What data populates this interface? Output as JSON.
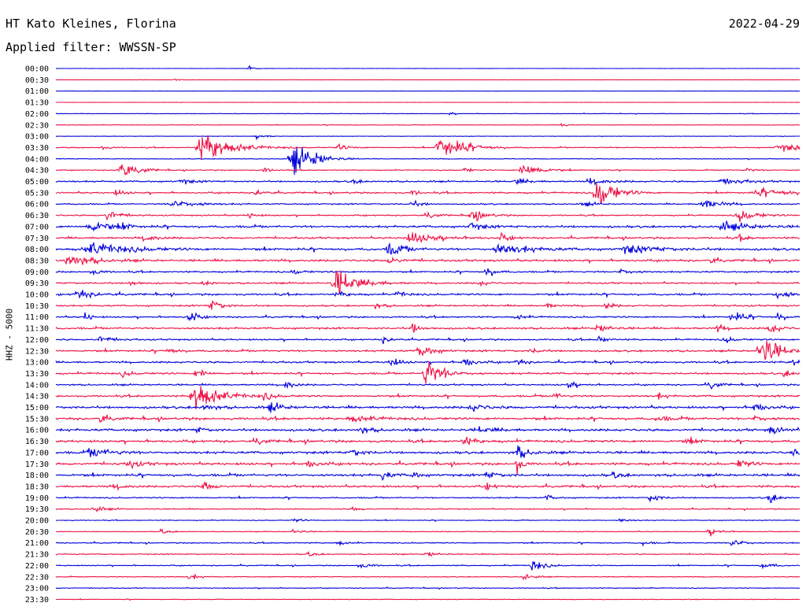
{
  "header": {
    "station": "HT Kato Kleines, Florina",
    "date": "2022-04-29",
    "filter_label": "Applied filter: WWSSN-SP"
  },
  "chart_data": {
    "type": "line",
    "title": "HT Kato Kleines, Florina",
    "subtitle": "Applied filter: WWSSN-SP",
    "ylabel": "HHZ - 5000",
    "xlabel": "",
    "grid": false,
    "legend": "none",
    "colors": [
      "#0000dd",
      "#ee1144"
    ],
    "rows": [
      "00:00",
      "00:30",
      "01:00",
      "01:30",
      "02:00",
      "02:30",
      "03:00",
      "03:30",
      "04:00",
      "04:30",
      "05:00",
      "05:30",
      "06:00",
      "06:30",
      "07:00",
      "07:30",
      "08:00",
      "08:30",
      "09:00",
      "09:30",
      "10:00",
      "10:30",
      "11:00",
      "11:30",
      "12:00",
      "12:30",
      "13:00",
      "13:30",
      "14:00",
      "14:30",
      "15:00",
      "15:30",
      "16:00",
      "16:30",
      "17:00",
      "17:30",
      "18:00",
      "18:30",
      "19:00",
      "19:30",
      "20:00",
      "20:30",
      "21:00",
      "21:30",
      "22:00",
      "22:30",
      "23:00",
      "23:30"
    ],
    "noise": [
      0.2,
      0.2,
      0.15,
      0.15,
      0.4,
      0.4,
      0.3,
      0.8,
      0.5,
      0.7,
      1.2,
      1.2,
      1.0,
      1.0,
      1.6,
      1.4,
      1.8,
      1.6,
      1.2,
      1.2,
      1.4,
      1.2,
      1.2,
      1.4,
      1.2,
      1.4,
      1.4,
      1.4,
      1.2,
      1.4,
      1.8,
      1.8,
      1.8,
      1.8,
      1.8,
      1.8,
      1.8,
      1.6,
      1.0,
      0.8,
      0.6,
      0.6,
      0.8,
      0.8,
      0.8,
      0.6,
      0.6,
      0.5
    ],
    "events": [
      [
        {
          "t": 0.26,
          "a": 4,
          "w": 2
        }
      ],
      [
        {
          "t": 0.16,
          "a": 2,
          "w": 2
        }
      ],
      [],
      [],
      [
        {
          "t": 0.53,
          "a": 3,
          "w": 2
        }
      ],
      [
        {
          "t": 0.68,
          "a": 4,
          "w": 2
        }
      ],
      [
        {
          "t": 0.27,
          "a": 6,
          "w": 3
        }
      ],
      [
        {
          "t": 0.2,
          "a": 28,
          "w": 10
        },
        {
          "t": 0.52,
          "a": 26,
          "w": 8
        },
        {
          "t": 0.38,
          "a": 5,
          "w": 4
        },
        {
          "t": 0.98,
          "a": 6,
          "w": 12
        },
        {
          "t": 0.06,
          "a": 4,
          "w": 3
        }
      ],
      [
        {
          "t": 0.32,
          "a": 26,
          "w": 7
        },
        {
          "t": 0.35,
          "a": 6,
          "w": 4
        }
      ],
      [
        {
          "t": 0.09,
          "a": 14,
          "w": 6
        },
        {
          "t": 0.63,
          "a": 14,
          "w": 6
        },
        {
          "t": 0.28,
          "a": 5,
          "w": 3
        },
        {
          "t": 0.55,
          "a": 4,
          "w": 3
        },
        {
          "t": 0.93,
          "a": 4,
          "w": 3
        }
      ],
      [
        {
          "t": 0.17,
          "a": 5,
          "w": 4
        },
        {
          "t": 0.4,
          "a": 4,
          "w": 3
        },
        {
          "t": 0.62,
          "a": 6,
          "w": 4
        },
        {
          "t": 0.72,
          "a": 5,
          "w": 6
        },
        {
          "t": 0.9,
          "a": 5,
          "w": 8
        }
      ],
      [
        {
          "t": 0.73,
          "a": 28,
          "w": 6
        },
        {
          "t": 0.27,
          "a": 6,
          "w": 3
        },
        {
          "t": 0.48,
          "a": 5,
          "w": 3
        },
        {
          "t": 0.95,
          "a": 6,
          "w": 12
        },
        {
          "t": 0.08,
          "a": 5,
          "w": 4
        }
      ],
      [
        {
          "t": 0.16,
          "a": 8,
          "w": 8
        },
        {
          "t": 0.87,
          "a": 10,
          "w": 6
        },
        {
          "t": 0.48,
          "a": 6,
          "w": 3
        },
        {
          "t": 0.71,
          "a": 4,
          "w": 4
        }
      ],
      [
        {
          "t": 0.07,
          "a": 12,
          "w": 4
        },
        {
          "t": 0.56,
          "a": 10,
          "w": 5
        },
        {
          "t": 0.92,
          "a": 10,
          "w": 6
        },
        {
          "t": 0.26,
          "a": 5,
          "w": 3
        },
        {
          "t": 0.5,
          "a": 6,
          "w": 3
        }
      ],
      [
        {
          "t": 0.05,
          "a": 10,
          "w": 8
        },
        {
          "t": 0.9,
          "a": 7,
          "w": 10
        },
        {
          "t": 0.56,
          "a": 6,
          "w": 5
        },
        {
          "t": 0.09,
          "a": 8,
          "w": 2
        }
      ],
      [
        {
          "t": 0.48,
          "a": 10,
          "w": 10
        },
        {
          "t": 0.6,
          "a": 8,
          "w": 3
        },
        {
          "t": 0.12,
          "a": 6,
          "w": 4
        },
        {
          "t": 0.92,
          "a": 5,
          "w": 3
        }
      ],
      [
        {
          "t": 0.05,
          "a": 12,
          "w": 12
        },
        {
          "t": 0.45,
          "a": 12,
          "w": 5
        },
        {
          "t": 0.6,
          "a": 10,
          "w": 10
        },
        {
          "t": 0.77,
          "a": 8,
          "w": 10
        }
      ],
      [
        {
          "t": 0.02,
          "a": 12,
          "w": 8
        },
        {
          "t": 0.45,
          "a": 6,
          "w": 4
        },
        {
          "t": 0.88,
          "a": 5,
          "w": 3
        }
      ],
      [
        {
          "t": 0.58,
          "a": 10,
          "w": 3
        },
        {
          "t": 0.76,
          "a": 6,
          "w": 4
        },
        {
          "t": 0.05,
          "a": 6,
          "w": 3
        },
        {
          "t": 0.32,
          "a": 5,
          "w": 3
        }
      ],
      [
        {
          "t": 0.38,
          "a": 24,
          "w": 8
        },
        {
          "t": 0.1,
          "a": 6,
          "w": 3
        },
        {
          "t": 0.57,
          "a": 5,
          "w": 3
        },
        {
          "t": 0.2,
          "a": 5,
          "w": 3
        }
      ],
      [
        {
          "t": 0.03,
          "a": 8,
          "w": 6
        },
        {
          "t": 0.46,
          "a": 6,
          "w": 3
        },
        {
          "t": 0.97,
          "a": 8,
          "w": 5
        },
        {
          "t": 0.38,
          "a": 5,
          "w": 4
        }
      ],
      [
        {
          "t": 0.21,
          "a": 10,
          "w": 4
        },
        {
          "t": 0.43,
          "a": 5,
          "w": 3
        },
        {
          "t": 0.66,
          "a": 5,
          "w": 3
        },
        {
          "t": 0.74,
          "a": 6,
          "w": 3
        }
      ],
      [
        {
          "t": 0.18,
          "a": 12,
          "w": 3
        },
        {
          "t": 0.04,
          "a": 10,
          "w": 2
        },
        {
          "t": 0.91,
          "a": 12,
          "w": 4
        },
        {
          "t": 0.97,
          "a": 8,
          "w": 3
        },
        {
          "t": 0.62,
          "a": 5,
          "w": 3
        }
      ],
      [
        {
          "t": 0.73,
          "a": 8,
          "w": 4
        },
        {
          "t": 0.48,
          "a": 8,
          "w": 3
        },
        {
          "t": 0.96,
          "a": 12,
          "w": 3
        },
        {
          "t": 0.89,
          "a": 6,
          "w": 3
        }
      ],
      [
        {
          "t": 0.06,
          "a": 7,
          "w": 4
        },
        {
          "t": 0.44,
          "a": 6,
          "w": 3
        },
        {
          "t": 0.73,
          "a": 6,
          "w": 3
        },
        {
          "t": 0.9,
          "a": 6,
          "w": 3
        }
      ],
      [
        {
          "t": 0.95,
          "a": 30,
          "w": 6
        },
        {
          "t": 0.49,
          "a": 14,
          "w": 4
        },
        {
          "t": 0.15,
          "a": 5,
          "w": 4
        },
        {
          "t": 0.64,
          "a": 5,
          "w": 3
        }
      ],
      [
        {
          "t": 0.45,
          "a": 12,
          "w": 3
        },
        {
          "t": 0.55,
          "a": 8,
          "w": 4
        },
        {
          "t": 0.99,
          "a": 8,
          "w": 3
        },
        {
          "t": 0.62,
          "a": 6,
          "w": 3
        }
      ],
      [
        {
          "t": 0.5,
          "a": 28,
          "w": 6
        },
        {
          "t": 0.19,
          "a": 12,
          "w": 3
        },
        {
          "t": 0.98,
          "a": 6,
          "w": 3
        },
        {
          "t": 0.09,
          "a": 5,
          "w": 3
        }
      ],
      [
        {
          "t": 0.69,
          "a": 8,
          "w": 3
        },
        {
          "t": 0.31,
          "a": 7,
          "w": 3
        },
        {
          "t": 0.88,
          "a": 8,
          "w": 3
        }
      ],
      [
        {
          "t": 0.19,
          "a": 30,
          "w": 8
        },
        {
          "t": 0.28,
          "a": 6,
          "w": 4
        },
        {
          "t": 0.67,
          "a": 6,
          "w": 3
        },
        {
          "t": 0.81,
          "a": 5,
          "w": 3
        }
      ],
      [
        {
          "t": 0.29,
          "a": 8,
          "w": 4
        },
        {
          "t": 0.94,
          "a": 8,
          "w": 4
        },
        {
          "t": 0.2,
          "a": 6,
          "w": 4
        },
        {
          "t": 0.56,
          "a": 6,
          "w": 5
        }
      ],
      [
        {
          "t": 0.06,
          "a": 8,
          "w": 3
        },
        {
          "t": 0.4,
          "a": 6,
          "w": 8
        },
        {
          "t": 0.94,
          "a": 6,
          "w": 4
        },
        {
          "t": 0.81,
          "a": 5,
          "w": 4
        }
      ],
      [
        {
          "t": 0.96,
          "a": 8,
          "w": 4
        },
        {
          "t": 0.41,
          "a": 6,
          "w": 4
        },
        {
          "t": 0.57,
          "a": 5,
          "w": 6
        },
        {
          "t": 0.19,
          "a": 5,
          "w": 3
        }
      ],
      [
        {
          "t": 0.55,
          "a": 8,
          "w": 4
        },
        {
          "t": 0.27,
          "a": 6,
          "w": 3
        },
        {
          "t": 0.85,
          "a": 6,
          "w": 4
        }
      ],
      [
        {
          "t": 0.62,
          "a": 14,
          "w": 4
        },
        {
          "t": 0.05,
          "a": 8,
          "w": 8
        },
        {
          "t": 0.4,
          "a": 6,
          "w": 4
        },
        {
          "t": 0.99,
          "a": 6,
          "w": 3
        }
      ],
      [
        {
          "t": 0.62,
          "a": 20,
          "w": 2
        },
        {
          "t": 0.92,
          "a": 10,
          "w": 3
        },
        {
          "t": 0.34,
          "a": 6,
          "w": 4
        },
        {
          "t": 0.1,
          "a": 6,
          "w": 5
        }
      ],
      [
        {
          "t": 0.44,
          "a": 8,
          "w": 3
        },
        {
          "t": 0.48,
          "a": 8,
          "w": 2
        },
        {
          "t": 0.75,
          "a": 6,
          "w": 3
        },
        {
          "t": 0.58,
          "a": 6,
          "w": 4
        }
      ],
      [
        {
          "t": 0.2,
          "a": 10,
          "w": 3
        },
        {
          "t": 0.58,
          "a": 6,
          "w": 3
        },
        {
          "t": 0.08,
          "a": 5,
          "w": 3
        }
      ],
      [
        {
          "t": 0.8,
          "a": 10,
          "w": 3
        },
        {
          "t": 0.96,
          "a": 10,
          "w": 3
        },
        {
          "t": 0.66,
          "a": 5,
          "w": 3
        }
      ],
      [
        {
          "t": 0.05,
          "a": 6,
          "w": 4
        },
        {
          "t": 0.4,
          "a": 4,
          "w": 3
        }
      ],
      [
        {
          "t": 0.32,
          "a": 4,
          "w": 3
        },
        {
          "t": 0.76,
          "a": 4,
          "w": 3
        }
      ],
      [
        {
          "t": 0.14,
          "a": 5,
          "w": 3
        },
        {
          "t": 0.32,
          "a": 5,
          "w": 3
        },
        {
          "t": 0.88,
          "a": 8,
          "w": 4
        }
      ],
      [
        {
          "t": 0.91,
          "a": 10,
          "w": 4
        },
        {
          "t": 0.38,
          "a": 5,
          "w": 3
        },
        {
          "t": 0.79,
          "a": 4,
          "w": 3
        }
      ],
      [
        {
          "t": 0.5,
          "a": 6,
          "w": 3
        },
        {
          "t": 0.34,
          "a": 4,
          "w": 3
        }
      ],
      [
        {
          "t": 0.64,
          "a": 12,
          "w": 4
        },
        {
          "t": 0.41,
          "a": 5,
          "w": 4
        },
        {
          "t": 0.95,
          "a": 8,
          "w": 3
        }
      ],
      [
        {
          "t": 0.63,
          "a": 8,
          "w": 3
        },
        {
          "t": 0.18,
          "a": 6,
          "w": 3
        }
      ],
      [],
      []
    ]
  }
}
